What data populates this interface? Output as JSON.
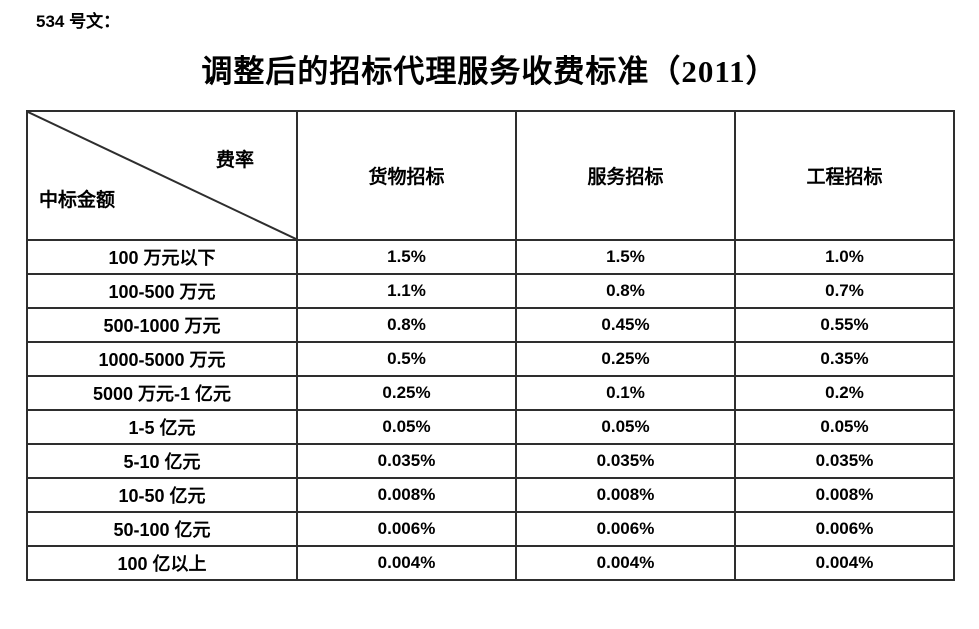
{
  "page": {
    "doc_label": "534 号文：",
    "title": "调整后的招标代理服务收费标准（2011）"
  },
  "table": {
    "corner": {
      "top_right": "费率",
      "bottom_left": "中标金额"
    },
    "columns": [
      "货物招标",
      "服务招标",
      "工程招标"
    ],
    "rows": [
      {
        "label": "100 万元以下",
        "values": [
          "1.5%",
          "1.5%",
          "1.0%"
        ]
      },
      {
        "label": "100-500 万元",
        "values": [
          "1.1%",
          "0.8%",
          "0.7%"
        ]
      },
      {
        "label": "500-1000 万元",
        "values": [
          "0.8%",
          "0.45%",
          "0.55%"
        ]
      },
      {
        "label": "1000-5000 万元",
        "values": [
          "0.5%",
          "0.25%",
          "0.35%"
        ]
      },
      {
        "label": "5000 万元-1 亿元",
        "values": [
          "0.25%",
          "0.1%",
          "0.2%"
        ]
      },
      {
        "label": "1-5 亿元",
        "values": [
          "0.05%",
          "0.05%",
          "0.05%"
        ]
      },
      {
        "label": "5-10 亿元",
        "values": [
          "0.035%",
          "0.035%",
          "0.035%"
        ]
      },
      {
        "label": "10-50 亿元",
        "values": [
          "0.008%",
          "0.008%",
          "0.008%"
        ]
      },
      {
        "label": "50-100 亿元",
        "values": [
          "0.006%",
          "0.006%",
          "0.006%"
        ]
      },
      {
        "label": "100 亿以上",
        "values": [
          "0.004%",
          "0.004%",
          "0.004%"
        ]
      }
    ]
  }
}
